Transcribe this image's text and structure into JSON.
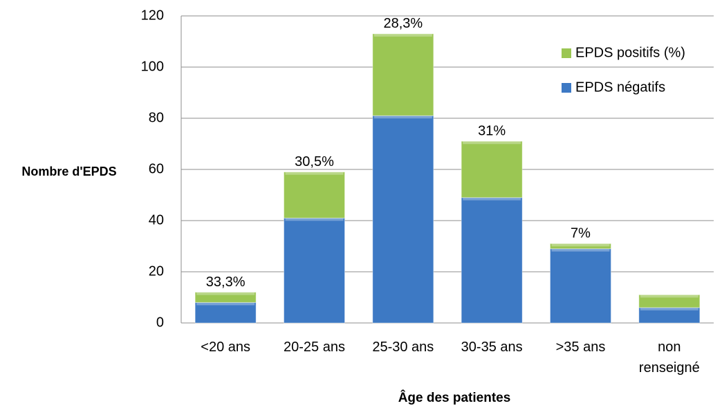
{
  "chart_data": {
    "type": "stacked-bar",
    "y_label": "Nombre d'EPDS",
    "x_label": "Âge des patientes",
    "categories": [
      "<20 ans",
      "20-25 ans",
      "25-30 ans",
      "30-35 ans",
      ">35 ans",
      "non renseigné"
    ],
    "series": [
      {
        "name": "EPDS négatifs",
        "color": "#3d79c4",
        "values": [
          8,
          41,
          81,
          49,
          29,
          6
        ]
      },
      {
        "name": "EPDS positifs (%)",
        "color": "#9bc653",
        "values": [
          4,
          18,
          32,
          22,
          2,
          5
        ]
      }
    ],
    "percent_labels": {
      "values": [
        33.3,
        30.5,
        28.3,
        31,
        7,
        null
      ],
      "value_labels": [
        "33,3%",
        "30,5%",
        "28,3%",
        "31%",
        "7%",
        null
      ]
    },
    "ylim": [
      0,
      120
    ],
    "yticks": [
      0,
      20,
      40,
      60,
      80,
      100,
      120
    ],
    "grid": true,
    "legend": "top-right"
  }
}
